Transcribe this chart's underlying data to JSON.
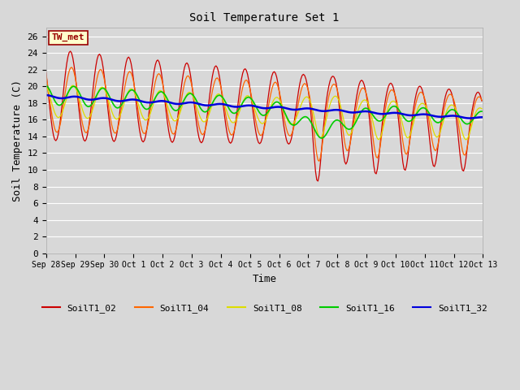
{
  "title": "Soil Temperature Set 1",
  "xlabel": "Time",
  "ylabel": "Soil Temperature (C)",
  "ylim": [
    0,
    27
  ],
  "yticks": [
    0,
    2,
    4,
    6,
    8,
    10,
    12,
    14,
    16,
    18,
    20,
    22,
    24,
    26
  ],
  "annotation_text": "TW_met",
  "colors": {
    "SoilT1_02": "#cc0000",
    "SoilT1_04": "#ff6600",
    "SoilT1_08": "#dddd00",
    "SoilT1_16": "#00cc00",
    "SoilT1_32": "#0000dd"
  },
  "bg_color": "#d8d8d8",
  "grid_color": "#ffffff",
  "x_tick_labels": [
    "Sep 28",
    "Sep 29",
    "Sep 30",
    "Oct 1",
    "Oct 2",
    "Oct 3",
    "Oct 4",
    "Oct 5",
    "Oct 6",
    "Oct 7",
    "Oct 8",
    "Oct 9",
    "Oct 10",
    "Oct 11",
    "Oct 12",
    "Oct 13"
  ],
  "num_days": 15
}
